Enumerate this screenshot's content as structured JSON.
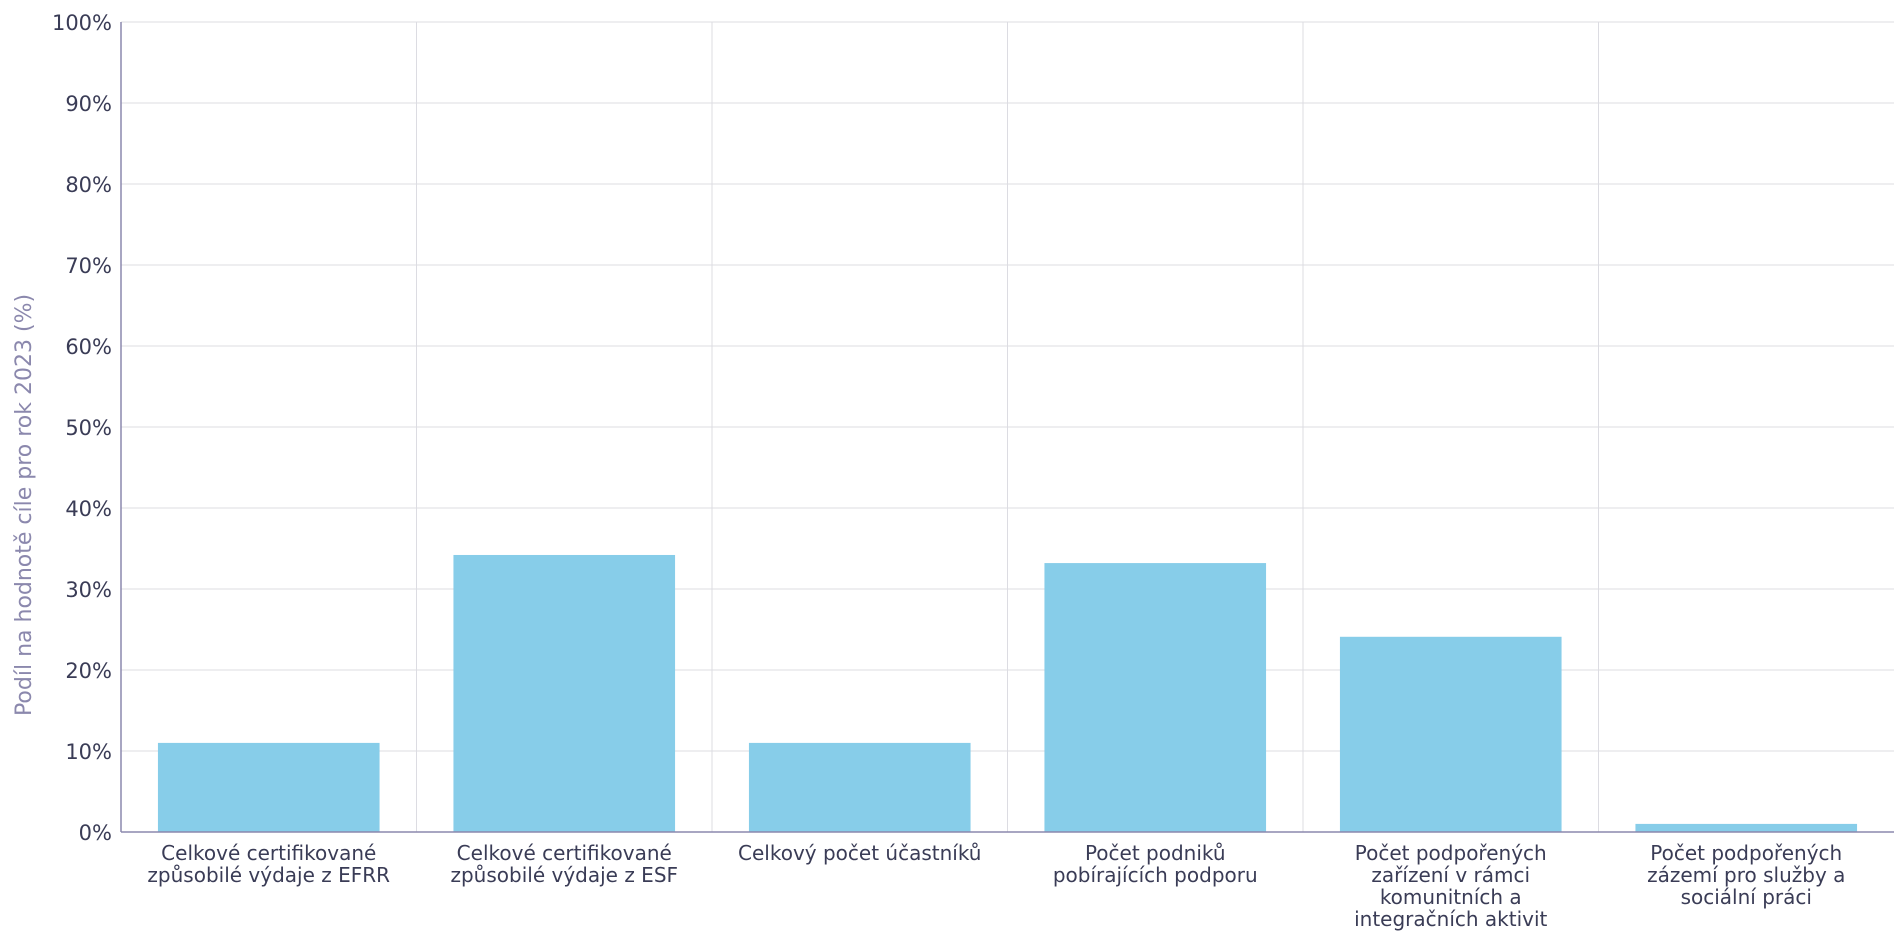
{
  "chart_data": {
    "type": "bar",
    "title": "",
    "xlabel": "",
    "ylabel": "Podíl na hodnotě cíle pro rok 2023 (%)",
    "ylim": [
      0,
      100
    ],
    "y_ticks": [
      "0%",
      "10%",
      "20%",
      "30%",
      "40%",
      "50%",
      "60%",
      "70%",
      "80%",
      "90%",
      "100%"
    ],
    "grid": true,
    "bar_color": "#87cde9",
    "categories": [
      [
        "Celkové certifikované",
        "způsobilé výdaje z EFRR"
      ],
      [
        "Celkové certifikované",
        "způsobilé výdaje z ESF"
      ],
      [
        "Celkový počet účastníků"
      ],
      [
        "Počet podniků",
        "pobírajících podporu"
      ],
      [
        "Počet podpořených",
        "zařízení v rámci",
        "komunitních a",
        "integračních aktivit"
      ],
      [
        "Počet podpořených",
        "zázemí pro služby a",
        "sociální práci"
      ]
    ],
    "values": [
      11,
      34.2,
      11,
      33.2,
      24.1,
      1
    ]
  }
}
